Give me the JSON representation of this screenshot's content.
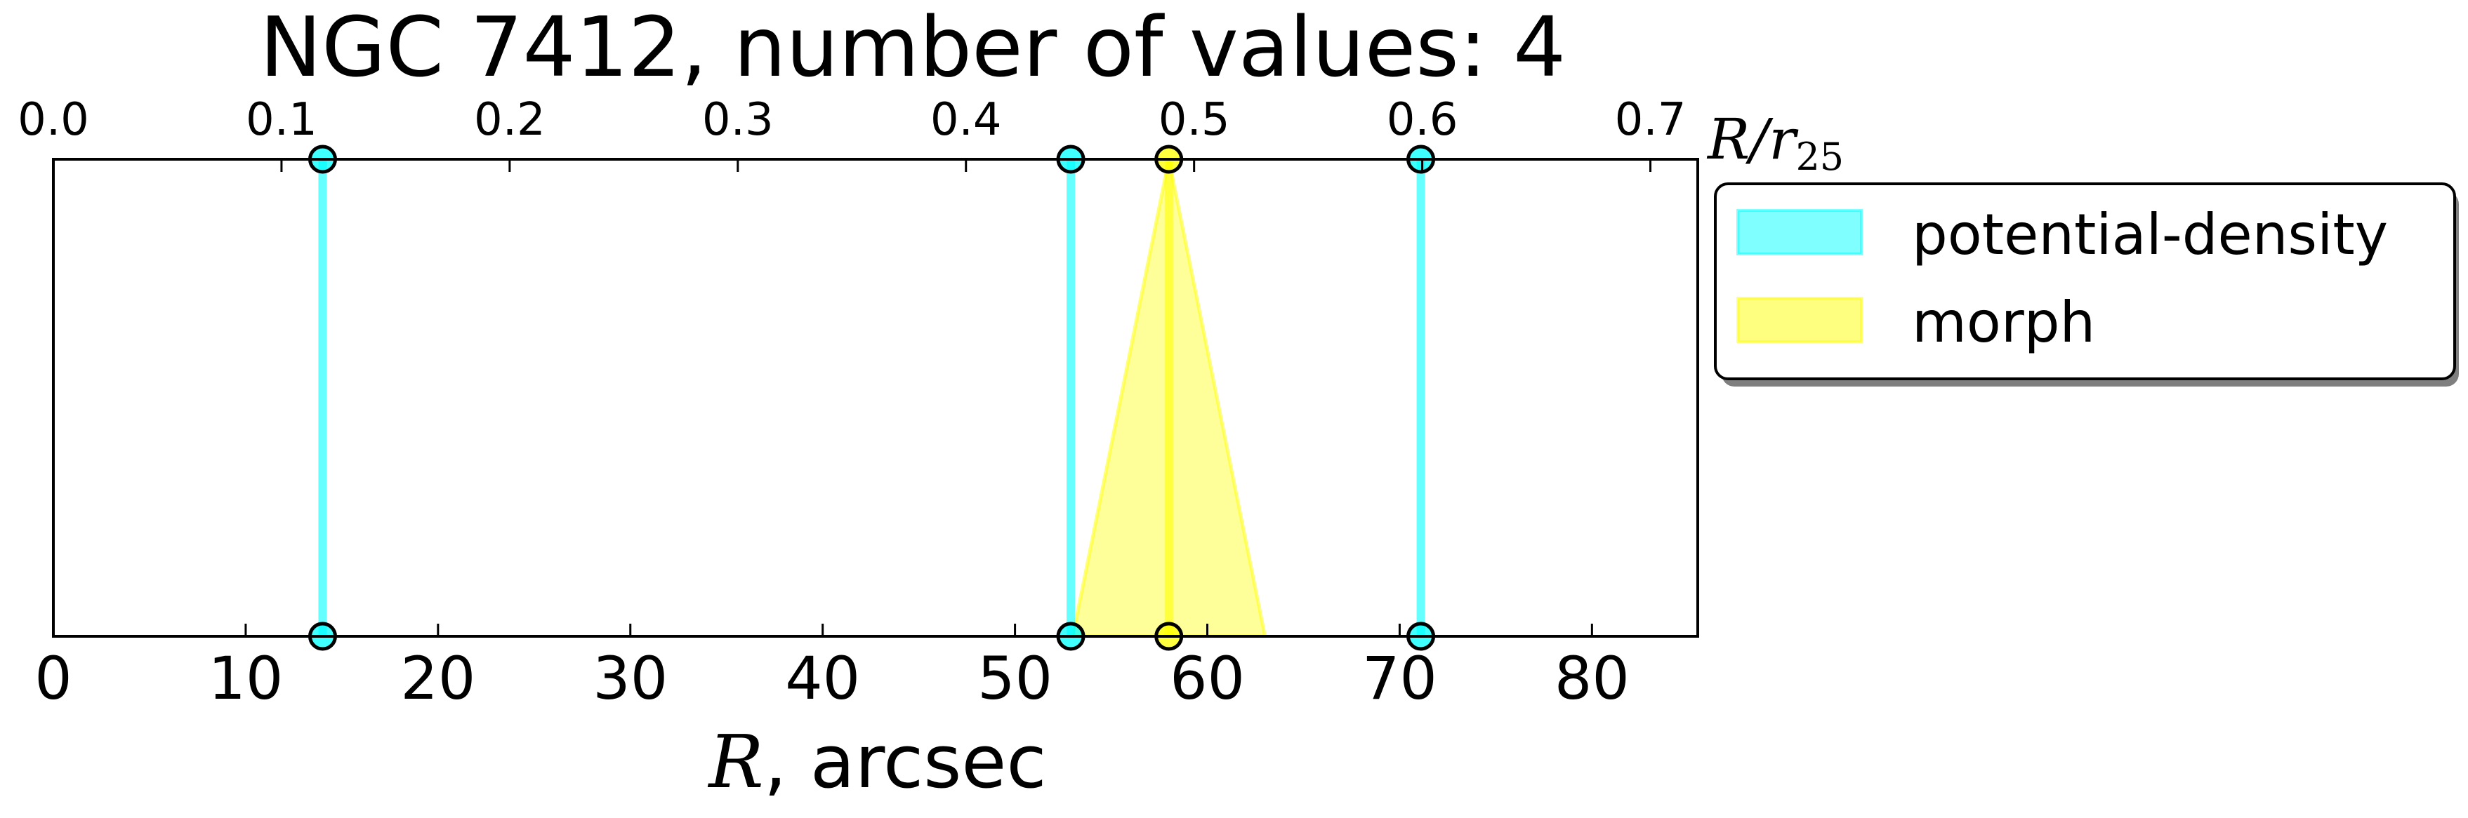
{
  "chart_data": {
    "type": "line",
    "title": "NGC 7412, number of values: 4",
    "xlabel": {
      "math": "R",
      "text": ", arcsec"
    },
    "xlabel_top": {
      "main": "R/r",
      "sub": "25"
    },
    "xlim": [
      0,
      85.5
    ],
    "x_ticks": [
      0,
      10,
      20,
      30,
      40,
      50,
      60,
      70,
      80
    ],
    "x_ticks_top": [
      "0.0",
      "0.1",
      "0.2",
      "0.3",
      "0.4",
      "0.5",
      "0.6",
      "0.7"
    ],
    "x_top_per_unit": 0.00843,
    "grid": false,
    "legend": "outside-right",
    "series": [
      {
        "name": "potential-density",
        "color": "#00ffff",
        "values": [
          14.0,
          52.9,
          71.1
        ]
      },
      {
        "name": "morph",
        "color": "#ffff00",
        "values": [
          58.0
        ],
        "ranges": [
          [
            53.0,
            63.0
          ]
        ]
      }
    ]
  }
}
